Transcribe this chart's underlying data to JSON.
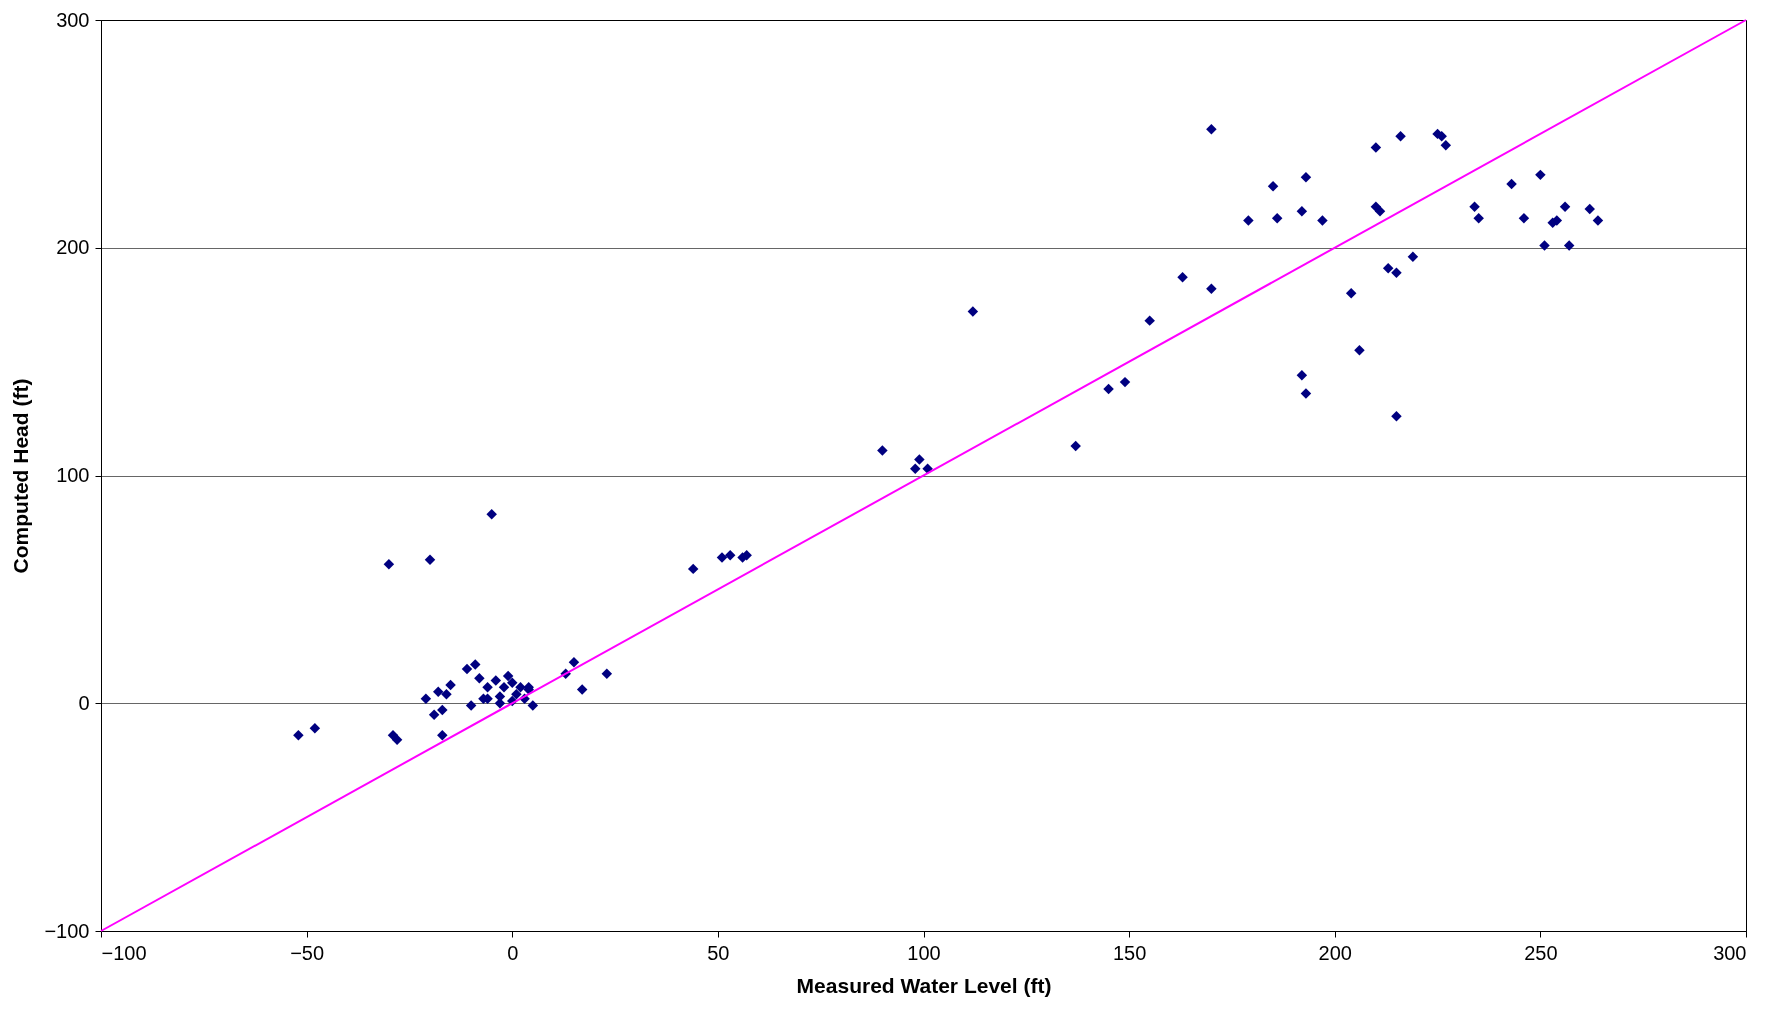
{
  "chart_data": {
    "type": "scatter",
    "xlabel": "Measured Water Level (ft)",
    "ylabel": "Computed Head (ft)",
    "xlim": [
      -100,
      300
    ],
    "xticks": [
      -100,
      -50,
      0,
      50,
      100,
      150,
      200,
      250,
      300
    ],
    "ylim": [
      -100,
      300
    ],
    "yticks": [
      -100,
      0,
      100,
      200,
      300
    ],
    "grid": "y",
    "series": [
      {
        "color": "#000080",
        "marker": "diamond",
        "x": [
          -52,
          -48,
          -30,
          -20,
          -5,
          -29,
          -28,
          -17,
          -21,
          -19,
          -17,
          -18,
          -15,
          -16,
          -11,
          -9,
          -8,
          -10,
          -7,
          -6,
          -4,
          -3,
          -2,
          -1,
          0,
          1,
          2,
          0,
          -3,
          3,
          4,
          5,
          4,
          -6,
          13,
          15,
          17,
          23,
          44,
          51,
          53,
          56,
          57,
          90,
          98,
          99,
          101,
          112,
          137,
          145,
          149,
          155,
          163,
          170,
          170,
          179,
          185,
          186,
          192,
          193,
          197,
          192,
          193,
          204,
          206,
          210,
          210,
          211,
          213,
          215,
          215,
          216,
          219,
          225,
          226,
          227,
          234,
          235,
          243,
          246,
          250,
          251,
          253,
          254,
          256,
          257,
          262,
          264
        ],
        "values": [
          -14,
          -11,
          61,
          63,
          83,
          -14,
          -16,
          -14,
          2,
          -5,
          -3,
          5,
          8,
          4,
          15,
          17,
          11,
          -1,
          2,
          7,
          10,
          3,
          7,
          12,
          9,
          4,
          7,
          1,
          0,
          2,
          6,
          -1,
          7,
          2,
          13,
          18,
          6,
          13,
          59,
          64,
          65,
          64,
          65,
          111,
          103,
          107,
          103,
          172,
          113,
          138,
          141,
          168,
          187,
          252,
          182,
          212,
          227,
          213,
          216,
          231,
          212,
          144,
          136,
          180,
          155,
          244,
          218,
          216,
          191,
          189,
          126,
          249,
          196,
          250,
          249,
          245,
          218,
          213,
          228,
          213,
          232,
          201,
          211,
          212,
          218,
          201,
          217,
          212
        ]
      },
      {
        "type": "line",
        "color": "#ff00ff",
        "marker": "none",
        "line_style": "solid",
        "x": [
          -100,
          300
        ],
        "values": [
          -100,
          300
        ]
      }
    ]
  }
}
